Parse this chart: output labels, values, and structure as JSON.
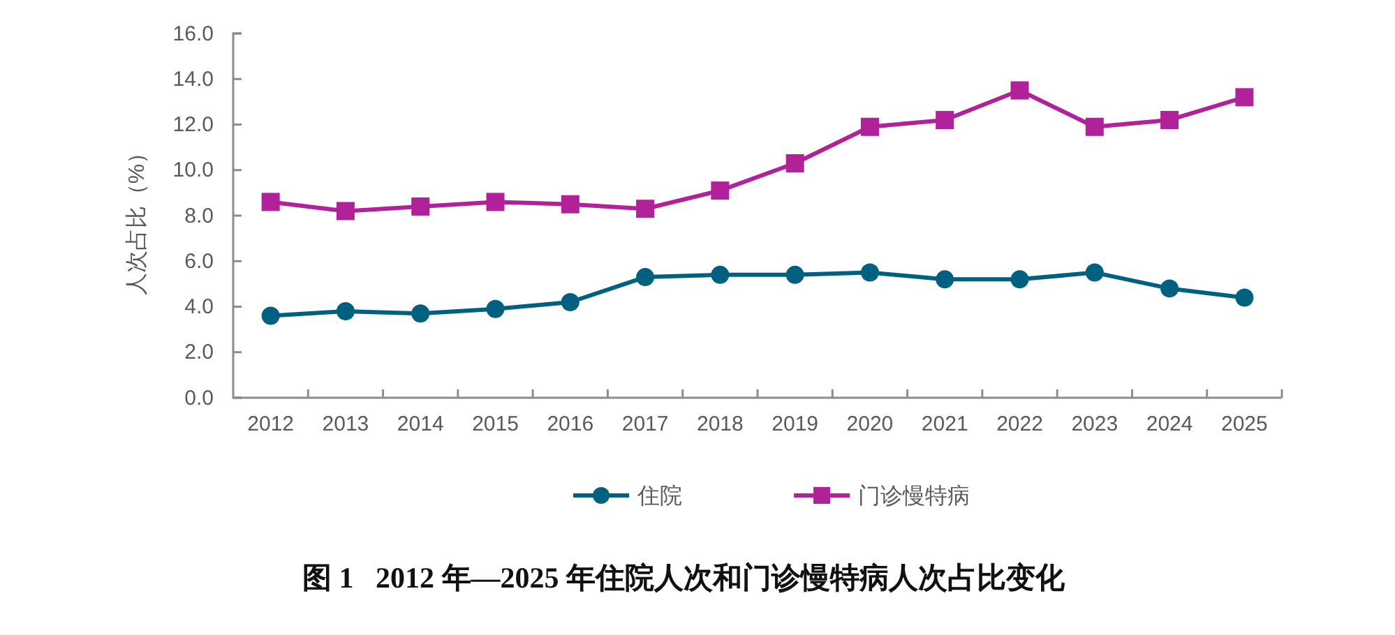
{
  "chart_data": {
    "type": "line",
    "title": "图 1   2012 年—2025 年住院人次和门诊慢特病人次占比变化",
    "ylabel": "人次占比（%）",
    "categories": [
      "2012",
      "2013",
      "2014",
      "2015",
      "2016",
      "2017",
      "2018",
      "2019",
      "2020",
      "2021",
      "2022",
      "2023",
      "2024",
      "2025"
    ],
    "series": [
      {
        "name": "住院",
        "color": "#00607f",
        "marker": "circle",
        "values": [
          3.6,
          3.8,
          3.7,
          3.9,
          4.2,
          5.3,
          5.4,
          5.4,
          5.5,
          5.2,
          5.2,
          5.5,
          4.8,
          4.4
        ]
      },
      {
        "name": "门诊慢特病",
        "color": "#b0219a",
        "marker": "square",
        "values": [
          8.6,
          8.2,
          8.4,
          8.6,
          8.5,
          8.3,
          9.1,
          10.3,
          11.9,
          12.2,
          13.5,
          11.9,
          12.2,
          13.2
        ]
      }
    ],
    "ylim": [
      0,
      16
    ],
    "yticks": [
      {
        "value": 0,
        "label": "0.0"
      },
      {
        "value": 2,
        "label": "2.0"
      },
      {
        "value": 4,
        "label": "4.0"
      },
      {
        "value": 6,
        "label": "6.0"
      },
      {
        "value": 8,
        "label": "8.0"
      },
      {
        "value": 10,
        "label": "10.0"
      },
      {
        "value": 12,
        "label": "12.0"
      },
      {
        "value": 14,
        "label": "14.0"
      },
      {
        "value": 16,
        "label": "16.0"
      }
    ],
    "grid": false,
    "legend": "bottom",
    "line_style": "solid"
  }
}
